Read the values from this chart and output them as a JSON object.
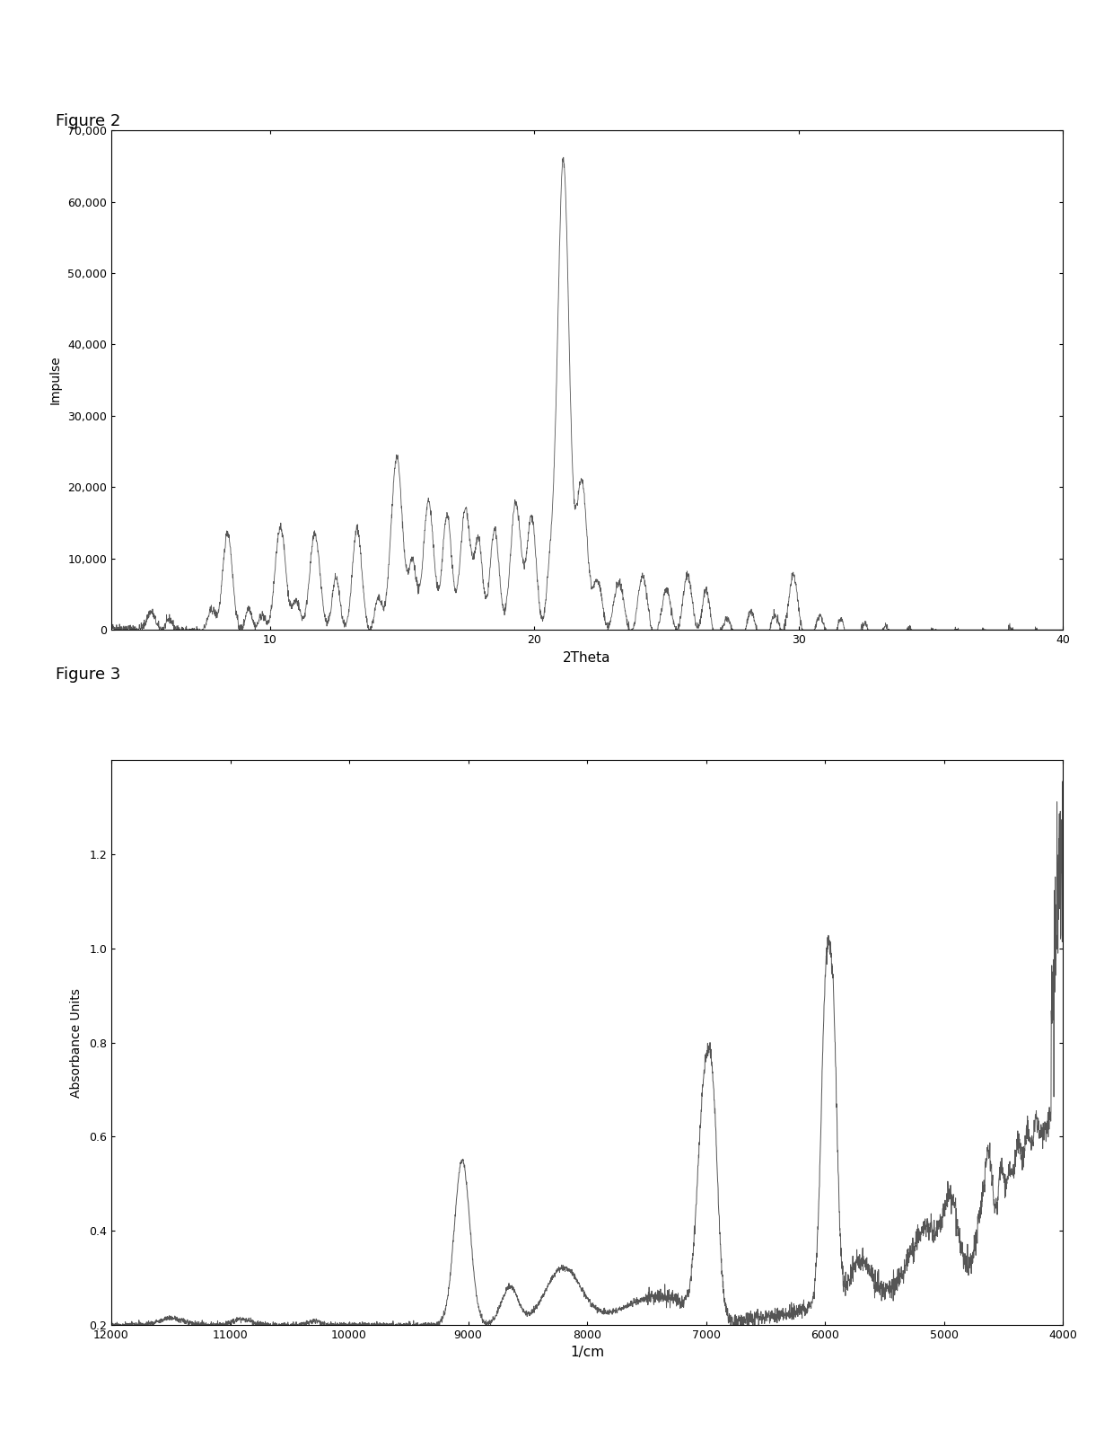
{
  "fig2_title": "Figure 2",
  "fig2_xlabel": "2Theta",
  "fig2_ylabel": "Impulse",
  "fig2_xlim": [
    4,
    40
  ],
  "fig2_ylim": [
    0,
    70000
  ],
  "fig2_yticks": [
    0,
    10000,
    20000,
    30000,
    40000,
    50000,
    60000,
    70000
  ],
  "fig2_ytick_labels": [
    "0",
    "10,000",
    "20,000",
    "30,000",
    "40,000",
    "50,000",
    "60,000",
    "70,000"
  ],
  "fig2_xticks": [
    10,
    20,
    30,
    40
  ],
  "fig3_title": "Figure 3",
  "fig3_xlabel": "1/cm",
  "fig3_ylabel": "Absorbance Units",
  "fig3_xlim": [
    12000,
    4000
  ],
  "fig3_ylim": [
    0.2,
    1.4
  ],
  "fig3_yticks": [
    0.2,
    0.4,
    0.6,
    0.8,
    1.0,
    1.2
  ],
  "fig3_xticks": [
    12000,
    11000,
    10000,
    9000,
    8000,
    7000,
    6000,
    5000,
    4000
  ],
  "line_color": "#555555",
  "bg_color": "#ffffff"
}
